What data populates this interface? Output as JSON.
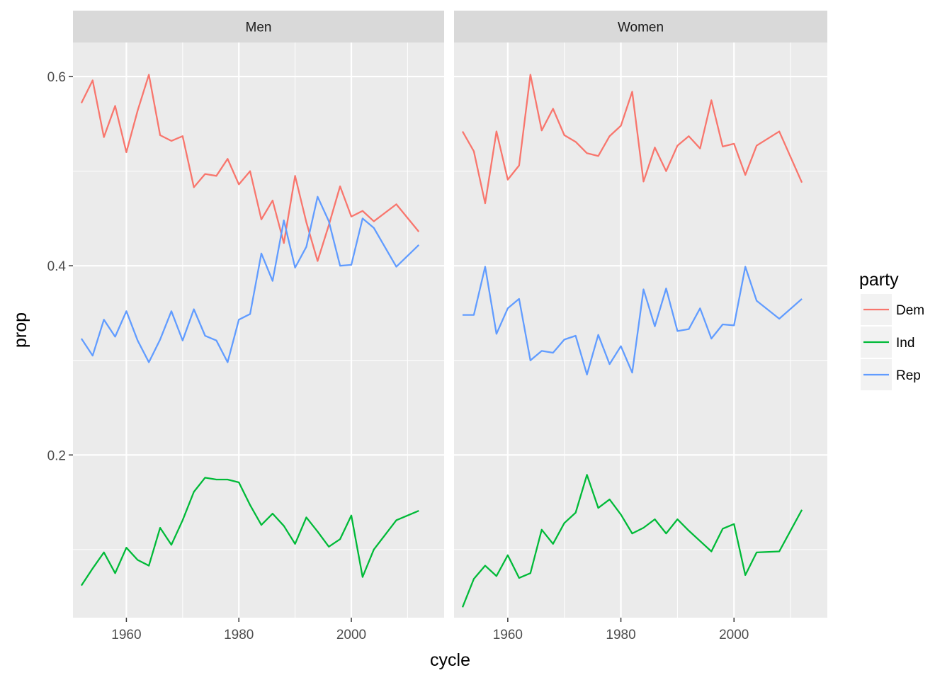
{
  "chart_data": {
    "type": "line",
    "facet_variable": "sex",
    "x_label": "cycle",
    "y_label": "prop",
    "x_range": [
      1950.5,
      2016.5
    ],
    "y_range": [
      0.028,
      0.636
    ],
    "x_ticks": [
      1960,
      1980,
      2000
    ],
    "x_tick_labels": [
      "1960",
      "1980",
      "2000"
    ],
    "y_ticks": [
      0.2,
      0.4,
      0.6
    ],
    "y_tick_labels": [
      "0.2",
      "0.4",
      "0.6"
    ],
    "grid": true,
    "legend": {
      "title": "party",
      "position": "right",
      "entries": [
        {
          "name": "Dem",
          "color": "#F8766D"
        },
        {
          "name": "Ind",
          "color": "#00BA38"
        },
        {
          "name": "Rep",
          "color": "#619CFF"
        }
      ]
    },
    "panels": [
      {
        "label": "Men",
        "series": [
          {
            "name": "Dem",
            "color": "#F8766D",
            "points": [
              [
                1952,
                0.572
              ],
              [
                1954,
                0.596
              ],
              [
                1956,
                0.536
              ],
              [
                1958,
                0.569
              ],
              [
                1960,
                0.52
              ],
              [
                1962,
                0.564
              ],
              [
                1964,
                0.602
              ],
              [
                1966,
                0.538
              ],
              [
                1968,
                0.532
              ],
              [
                1970,
                0.537
              ],
              [
                1972,
                0.483
              ],
              [
                1974,
                0.497
              ],
              [
                1976,
                0.495
              ],
              [
                1978,
                0.513
              ],
              [
                1980,
                0.486
              ],
              [
                1982,
                0.5
              ],
              [
                1984,
                0.449
              ],
              [
                1986,
                0.469
              ],
              [
                1988,
                0.424
              ],
              [
                1990,
                0.495
              ],
              [
                1992,
                0.446
              ],
              [
                1994,
                0.405
              ],
              [
                1996,
                0.443
              ],
              [
                1998,
                0.484
              ],
              [
                2000,
                0.452
              ],
              [
                2002,
                0.458
              ],
              [
                2004,
                0.447
              ],
              [
                2008,
                0.465
              ],
              [
                2012,
                0.436
              ]
            ]
          },
          {
            "name": "Ind",
            "color": "#00BA38",
            "points": [
              [
                1952,
                0.062
              ],
              [
                1954,
                0.08
              ],
              [
                1956,
                0.097
              ],
              [
                1958,
                0.075
              ],
              [
                1960,
                0.102
              ],
              [
                1962,
                0.089
              ],
              [
                1964,
                0.083
              ],
              [
                1966,
                0.123
              ],
              [
                1968,
                0.105
              ],
              [
                1970,
                0.131
              ],
              [
                1972,
                0.161
              ],
              [
                1974,
                0.176
              ],
              [
                1976,
                0.174
              ],
              [
                1978,
                0.174
              ],
              [
                1980,
                0.171
              ],
              [
                1982,
                0.147
              ],
              [
                1984,
                0.126
              ],
              [
                1986,
                0.138
              ],
              [
                1988,
                0.125
              ],
              [
                1990,
                0.106
              ],
              [
                1992,
                0.134
              ],
              [
                1994,
                0.119
              ],
              [
                1996,
                0.103
              ],
              [
                1998,
                0.111
              ],
              [
                2000,
                0.136
              ],
              [
                2002,
                0.071
              ],
              [
                2004,
                0.1
              ],
              [
                2008,
                0.131
              ],
              [
                2012,
                0.141
              ]
            ]
          },
          {
            "name": "Rep",
            "color": "#619CFF",
            "points": [
              [
                1952,
                0.323
              ],
              [
                1954,
                0.305
              ],
              [
                1956,
                0.343
              ],
              [
                1958,
                0.325
              ],
              [
                1960,
                0.352
              ],
              [
                1962,
                0.321
              ],
              [
                1964,
                0.298
              ],
              [
                1966,
                0.322
              ],
              [
                1968,
                0.352
              ],
              [
                1970,
                0.321
              ],
              [
                1972,
                0.354
              ],
              [
                1974,
                0.326
              ],
              [
                1976,
                0.321
              ],
              [
                1978,
                0.298
              ],
              [
                1980,
                0.343
              ],
              [
                1982,
                0.349
              ],
              [
                1984,
                0.413
              ],
              [
                1986,
                0.384
              ],
              [
                1988,
                0.448
              ],
              [
                1990,
                0.398
              ],
              [
                1992,
                0.42
              ],
              [
                1994,
                0.473
              ],
              [
                1996,
                0.447
              ],
              [
                1998,
                0.4
              ],
              [
                2000,
                0.401
              ],
              [
                2002,
                0.45
              ],
              [
                2004,
                0.44
              ],
              [
                2008,
                0.399
              ],
              [
                2012,
                0.422
              ]
            ]
          }
        ]
      },
      {
        "label": "Women",
        "series": [
          {
            "name": "Dem",
            "color": "#F8766D",
            "points": [
              [
                1952,
                0.542
              ],
              [
                1954,
                0.521
              ],
              [
                1956,
                0.466
              ],
              [
                1958,
                0.542
              ],
              [
                1960,
                0.491
              ],
              [
                1962,
                0.506
              ],
              [
                1964,
                0.602
              ],
              [
                1966,
                0.543
              ],
              [
                1968,
                0.566
              ],
              [
                1970,
                0.538
              ],
              [
                1972,
                0.531
              ],
              [
                1974,
                0.519
              ],
              [
                1976,
                0.516
              ],
              [
                1978,
                0.537
              ],
              [
                1980,
                0.548
              ],
              [
                1982,
                0.584
              ],
              [
                1984,
                0.489
              ],
              [
                1986,
                0.525
              ],
              [
                1988,
                0.5
              ],
              [
                1990,
                0.527
              ],
              [
                1992,
                0.537
              ],
              [
                1994,
                0.524
              ],
              [
                1996,
                0.575
              ],
              [
                1998,
                0.526
              ],
              [
                2000,
                0.529
              ],
              [
                2002,
                0.496
              ],
              [
                2004,
                0.527
              ],
              [
                2008,
                0.542
              ],
              [
                2012,
                0.488
              ]
            ]
          },
          {
            "name": "Ind",
            "color": "#00BA38",
            "points": [
              [
                1952,
                0.039
              ],
              [
                1954,
                0.069
              ],
              [
                1956,
                0.083
              ],
              [
                1958,
                0.072
              ],
              [
                1960,
                0.094
              ],
              [
                1962,
                0.07
              ],
              [
                1964,
                0.075
              ],
              [
                1966,
                0.121
              ],
              [
                1968,
                0.106
              ],
              [
                1970,
                0.128
              ],
              [
                1972,
                0.139
              ],
              [
                1974,
                0.179
              ],
              [
                1976,
                0.144
              ],
              [
                1978,
                0.153
              ],
              [
                1980,
                0.137
              ],
              [
                1982,
                0.117
              ],
              [
                1984,
                0.123
              ],
              [
                1986,
                0.132
              ],
              [
                1988,
                0.117
              ],
              [
                1990,
                0.132
              ],
              [
                1992,
                0.12
              ],
              [
                1994,
                0.109
              ],
              [
                1996,
                0.098
              ],
              [
                1998,
                0.122
              ],
              [
                2000,
                0.127
              ],
              [
                2002,
                0.073
              ],
              [
                2004,
                0.097
              ],
              [
                2008,
                0.098
              ],
              [
                2012,
                0.142
              ]
            ]
          },
          {
            "name": "Rep",
            "color": "#619CFF",
            "points": [
              [
                1952,
                0.348
              ],
              [
                1954,
                0.348
              ],
              [
                1956,
                0.399
              ],
              [
                1958,
                0.328
              ],
              [
                1960,
                0.355
              ],
              [
                1962,
                0.365
              ],
              [
                1964,
                0.3
              ],
              [
                1966,
                0.31
              ],
              [
                1968,
                0.308
              ],
              [
                1970,
                0.322
              ],
              [
                1972,
                0.326
              ],
              [
                1974,
                0.285
              ],
              [
                1976,
                0.327
              ],
              [
                1978,
                0.296
              ],
              [
                1980,
                0.315
              ],
              [
                1982,
                0.287
              ],
              [
                1984,
                0.375
              ],
              [
                1986,
                0.336
              ],
              [
                1988,
                0.376
              ],
              [
                1990,
                0.331
              ],
              [
                1992,
                0.333
              ],
              [
                1994,
                0.355
              ],
              [
                1996,
                0.323
              ],
              [
                1998,
                0.338
              ],
              [
                2000,
                0.337
              ],
              [
                2002,
                0.399
              ],
              [
                2004,
                0.363
              ],
              [
                2008,
                0.344
              ],
              [
                2012,
                0.365
              ]
            ]
          }
        ]
      }
    ]
  }
}
